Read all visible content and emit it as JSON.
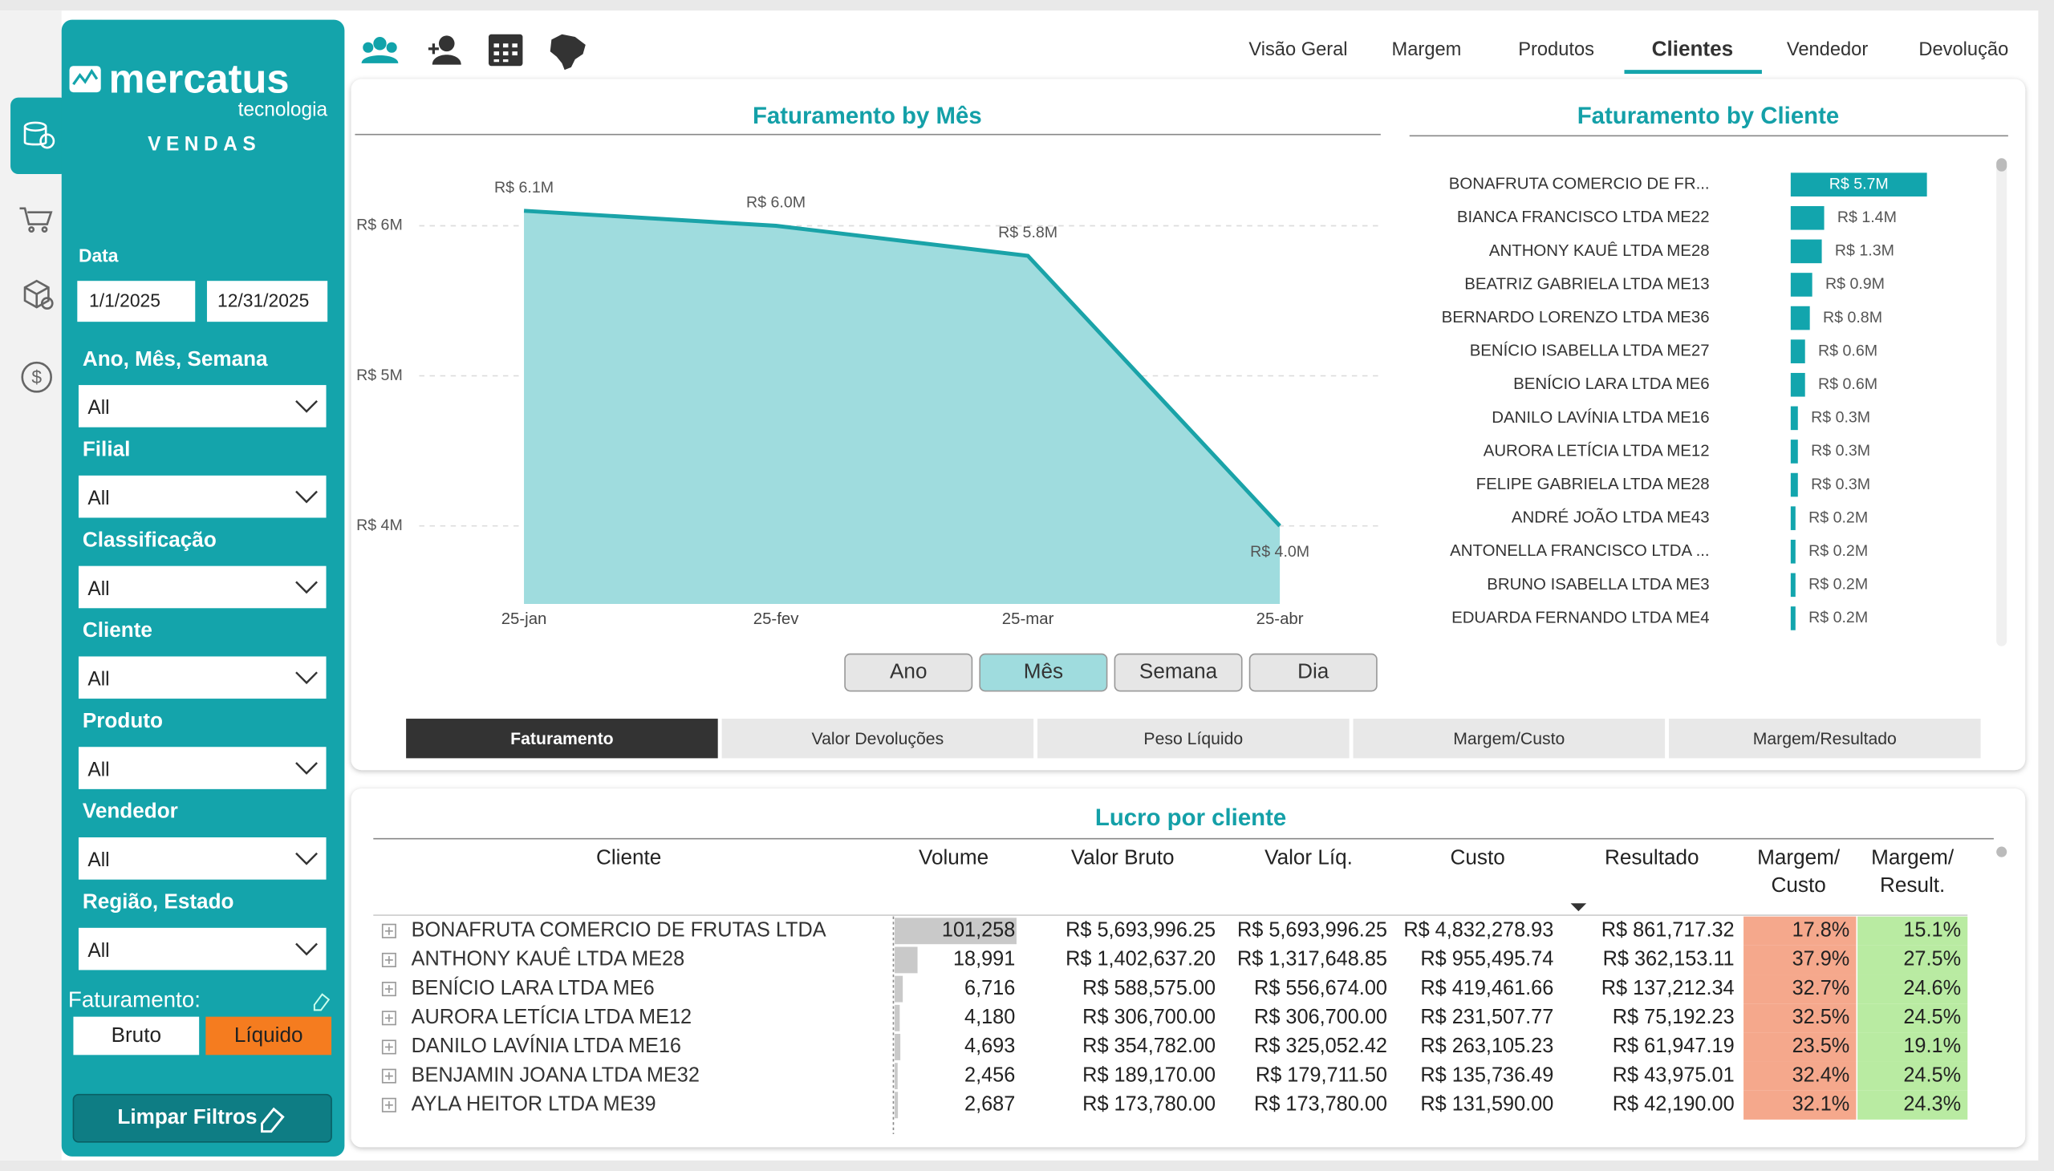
{
  "sidebar": {
    "logo": "mercatus",
    "logo_sub": "tecnologia",
    "section": "VENDAS",
    "date_label": "Data",
    "date_start": "1/1/2025",
    "date_end": "12/31/2025",
    "filters": [
      {
        "label": "Ano, Mês, Semana",
        "value": "All"
      },
      {
        "label": "Filial",
        "value": "All"
      },
      {
        "label": "Classificação",
        "value": "All"
      },
      {
        "label": "Cliente",
        "value": "All"
      },
      {
        "label": "Produto",
        "value": "All"
      },
      {
        "label": "Vendedor",
        "value": "All"
      },
      {
        "label": "Região, Estado",
        "value": "All"
      }
    ],
    "faturamento_label": "Faturamento:",
    "faturamento_options": [
      "Bruto",
      "Líquido"
    ],
    "faturamento_active": 1,
    "clear_button": "Limpar Filtros"
  },
  "nav": {
    "tabs": [
      "Visão Geral",
      "Margem",
      "Produtos",
      "Clientes",
      "Vendedor",
      "Devolução"
    ],
    "active": 3
  },
  "chart_data": [
    {
      "type": "area",
      "title": "Faturamento by Mês",
      "categories": [
        "25-jan",
        "25-fev",
        "25-mar",
        "25-abr"
      ],
      "values": [
        6.1,
        6.0,
        5.8,
        4.0
      ],
      "value_labels": [
        "R$ 6.1M",
        "R$ 6.0M",
        "R$ 5.8M",
        "R$ 4.0M"
      ],
      "color": "#1aa3a8",
      "fill": "#9fdcde",
      "ylim": [
        3.48,
        6.45
      ],
      "yticks": [
        {
          "value": 4,
          "label": "R$ 4M"
        },
        {
          "value": 5,
          "label": "R$ 5M"
        },
        {
          "value": 6,
          "label": "R$ 6M"
        }
      ],
      "grid": true
    },
    {
      "type": "hbar",
      "title": "Faturamento by Cliente",
      "categories": [
        "BONAFRUTA COMERCIO DE FR...",
        "BIANCA FRANCISCO LTDA ME22",
        "ANTHONY KAUÊ LTDA ME28",
        "BEATRIZ GABRIELA LTDA ME13",
        "BERNARDO LORENZO LTDA ME36",
        "BENÍCIO ISABELLA LTDA ME27",
        "BENÍCIO LARA LTDA ME6",
        "DANILO LAVÍNIA LTDA ME16",
        "AURORA LETÍCIA LTDA ME12",
        "FELIPE GABRIELA LTDA ME28",
        "ANDRÉ JOÃO LTDA ME43",
        "ANTONELLA FRANCISCO LTDA ...",
        "BRUNO ISABELLA LTDA ME3",
        "EDUARDA FERNANDO LTDA ME4"
      ],
      "values": [
        5.7,
        1.4,
        1.3,
        0.9,
        0.8,
        0.6,
        0.6,
        0.3,
        0.3,
        0.3,
        0.2,
        0.2,
        0.2,
        0.2
      ],
      "value_labels": [
        "R$ 5.7M",
        "R$ 1.4M",
        "R$ 1.3M",
        "R$ 0.9M",
        "R$ 0.8M",
        "R$ 0.6M",
        "R$ 0.6M",
        "R$ 0.3M",
        "R$ 0.3M",
        "R$ 0.3M",
        "R$ 0.2M",
        "R$ 0.2M",
        "R$ 0.2M",
        "R$ 0.2M"
      ],
      "color": "#12a5ad"
    }
  ],
  "period_buttons": [
    "Ano",
    "Mês",
    "Semana",
    "Dia"
  ],
  "period_active": 1,
  "metric_tabs": [
    "Faturamento",
    "Valor Devoluções",
    "Peso Líquido",
    "Margem/Custo",
    "Margem/Resultado"
  ],
  "metric_active": 0,
  "table": {
    "title": "Lucro por cliente",
    "columns": [
      "Cliente",
      "Volume",
      "Valor Bruto",
      "Valor Líq.",
      "Custo",
      "Resultado",
      [
        "Margem/",
        "Custo"
      ],
      [
        "Margem/",
        "Result."
      ]
    ],
    "rows": [
      [
        "BONAFRUTA COMERCIO DE FRUTAS LTDA",
        "101,258",
        "R$ 5,693,996.25",
        "R$ 5,693,996.25",
        "R$ 4,832,278.93",
        "R$ 861,717.32",
        "17.8%",
        "15.1%"
      ],
      [
        "ANTHONY KAUÊ LTDA ME28",
        "18,991",
        "R$ 1,402,637.20",
        "R$ 1,317,648.85",
        "R$ 955,495.74",
        "R$ 362,153.11",
        "37.9%",
        "27.5%"
      ],
      [
        "BENÍCIO LARA LTDA ME6",
        "6,716",
        "R$ 588,575.00",
        "R$ 556,674.00",
        "R$ 419,461.66",
        "R$ 137,212.34",
        "32.7%",
        "24.6%"
      ],
      [
        "AURORA LETÍCIA LTDA ME12",
        "4,180",
        "R$ 306,700.00",
        "R$ 306,700.00",
        "R$ 231,507.77",
        "R$ 75,192.23",
        "32.5%",
        "24.5%"
      ],
      [
        "DANILO LAVÍNIA LTDA ME16",
        "4,693",
        "R$ 354,782.00",
        "R$ 325,052.42",
        "R$ 263,105.23",
        "R$ 61,947.19",
        "23.5%",
        "19.1%"
      ],
      [
        "BENJAMIN JOANA LTDA ME32",
        "2,456",
        "R$ 189,170.00",
        "R$ 179,711.50",
        "R$ 135,736.49",
        "R$ 43,975.01",
        "32.4%",
        "24.5%"
      ],
      [
        "AYLA HEITOR LTDA ME39",
        "2,687",
        "R$ 173,780.00",
        "R$ 173,780.00",
        "R$ 131,590.00",
        "R$ 42,190.00",
        "32.1%",
        "24.3%"
      ]
    ]
  }
}
